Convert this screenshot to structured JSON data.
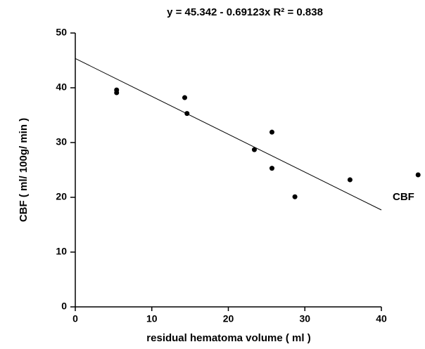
{
  "chart_data": {
    "type": "scatter",
    "title": "y = 45.342 - 0.69123x   R² = 0.838",
    "x_label": "residual hematoma volume ( ml )",
    "y_label": "CBF ( ml/ 100g/ min )",
    "series": [
      {
        "name": "CBF",
        "color": "#000000",
        "x": [
          5.4,
          5.4,
          14.3,
          14.6,
          23.4,
          25.7,
          25.7,
          28.7,
          35.9,
          44.8
        ],
        "values": [
          39.6,
          39.1,
          38.2,
          35.3,
          28.7,
          31.9,
          25.3,
          20.1,
          23.2,
          24.1
        ]
      }
    ],
    "trendline": {
      "intercept": 45.342,
      "slope": -0.69123
    },
    "xlim": [
      0,
      40
    ],
    "xticks": [
      0,
      10,
      20,
      30,
      40
    ],
    "ylim": [
      0,
      50
    ],
    "yticks": [
      0,
      10,
      20,
      30,
      40,
      50
    ],
    "grid": false
  }
}
